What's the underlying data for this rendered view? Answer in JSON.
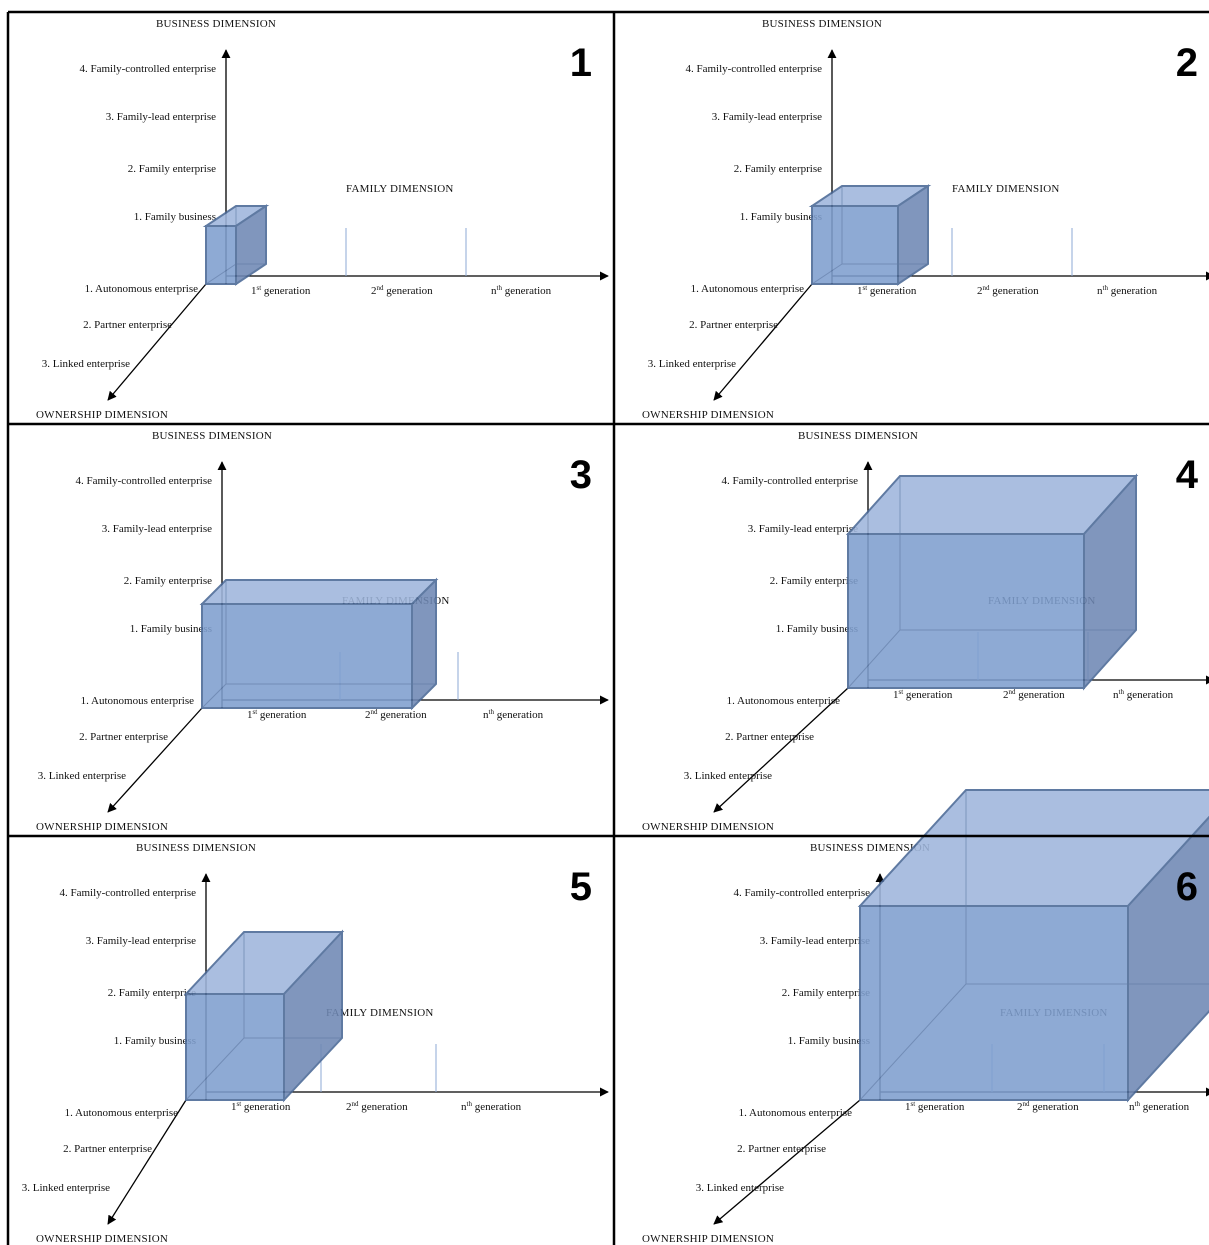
{
  "axes": {
    "business_title": "BUSINESS DIMENSION",
    "family_title": "FAMILY DIMENSION",
    "ownership_title": "OWNERSHIP DIMENSION"
  },
  "business_levels": [
    "4. Family-controlled enterprise",
    "3.  Family-lead enterprise",
    "2. Family enterprise",
    "1. Family business"
  ],
  "ownership_levels": [
    "1. Autonomous enterprise",
    "2. Partner enterprise",
    "3. Linked enterprise"
  ],
  "family_levels": [
    {
      "base": "1",
      "sup": "st",
      "rest": " generation"
    },
    {
      "base": "2",
      "sup": "nd",
      "rest": " generation"
    },
    {
      "base": "n",
      "sup": "th",
      "rest": " generation"
    }
  ],
  "panels": [
    {
      "number": "1",
      "cube": {
        "business": 1,
        "family": 1,
        "ownership": 1
      }
    },
    {
      "number": "2",
      "cube": {
        "business": 2,
        "family": 1,
        "ownership": 1
      }
    },
    {
      "number": "3",
      "cube": {
        "business": 2,
        "family": 2,
        "ownership": 1
      }
    },
    {
      "number": "4",
      "cube": {
        "business": 3,
        "family": 2,
        "ownership": 2
      }
    },
    {
      "number": "5",
      "cube": {
        "business": 2,
        "family": 1,
        "ownership": 2
      }
    },
    {
      "number": "6",
      "cube": {
        "business": 4,
        "family": 3,
        "ownership": 3
      }
    }
  ],
  "colors": {
    "cube_front": "#7f9fcf",
    "cube_top": "#9fb6dc",
    "cube_side": "#6f88b4",
    "cube_edge": "#4a6896",
    "tick": "#8eaad6",
    "axis": "#000000"
  }
}
